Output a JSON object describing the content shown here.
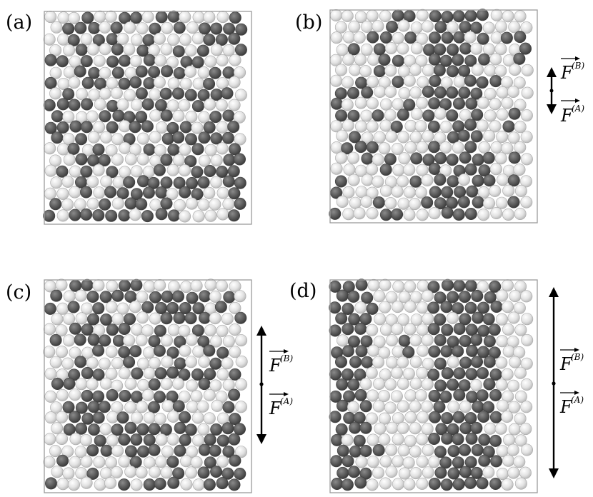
{
  "colors": {
    "dark_particle": "#5a5a5a",
    "light_particle": "#d9d9d9",
    "box_border": "#9a9a9a",
    "ink": "#000000"
  },
  "panels": [
    {
      "label": "(a)",
      "pattern": "mixed"
    },
    {
      "label": "(b)",
      "pattern": "partial-lanes",
      "forces": {
        "upper": "F",
        "upper_sup": "(B)",
        "lower": "F",
        "lower_sup": "(A)"
      }
    },
    {
      "label": "(c)",
      "pattern": "clusters",
      "forces": {
        "upper": "F",
        "upper_sup": "(B)",
        "lower": "F",
        "lower_sup": "(A)"
      }
    },
    {
      "label": "(d)",
      "pattern": "lanes",
      "forces": {
        "upper": "F",
        "upper_sup": "(B)",
        "lower": "F",
        "lower_sup": "(A)"
      }
    }
  ]
}
